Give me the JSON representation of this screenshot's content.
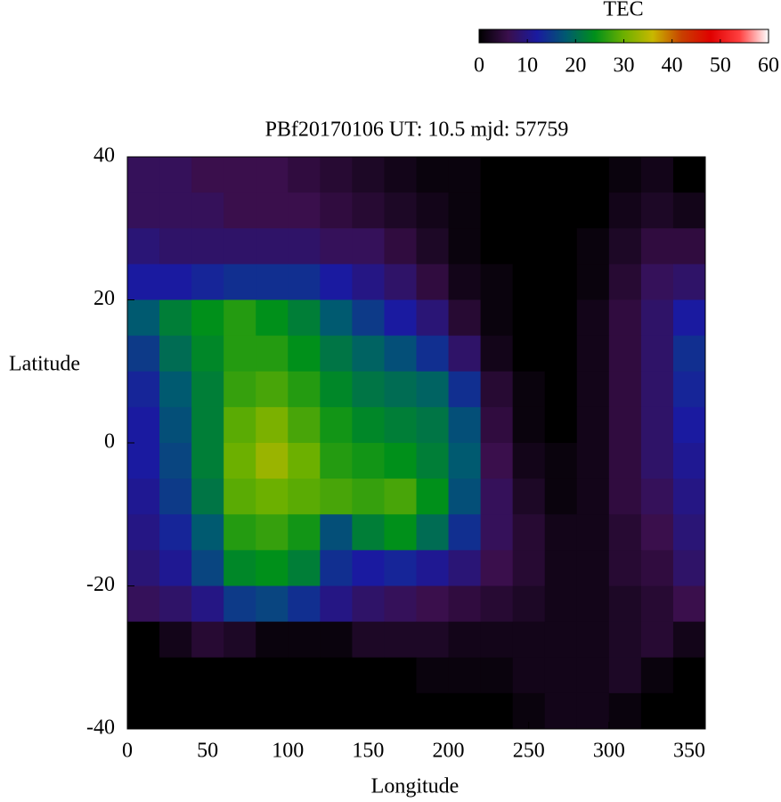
{
  "chart_data": {
    "type": "heatmap",
    "title": "PBf20170106  UT: 10.5  mjd: 57759",
    "xlabel": "Longitude",
    "ylabel": "Latitude",
    "colorbar_label": "TEC",
    "x": [
      10,
      30,
      50,
      70,
      90,
      110,
      130,
      150,
      170,
      190,
      210,
      230,
      250,
      270,
      290,
      310,
      330,
      350
    ],
    "y": [
      37.5,
      32.5,
      27.5,
      22.5,
      17.5,
      12.5,
      7.5,
      2.5,
      -2.5,
      -7.5,
      -12.5,
      -17.5,
      -22.5,
      -27.5,
      -32.5,
      -37.5
    ],
    "z": [
      [
        7,
        7,
        6,
        6,
        6,
        5,
        4,
        3,
        2,
        1,
        1,
        0,
        0,
        0,
        0,
        1,
        2,
        0
      ],
      [
        7,
        7,
        7,
        6,
        6,
        6,
        5,
        4,
        3,
        2,
        1,
        0,
        0,
        0,
        0,
        2,
        3,
        2
      ],
      [
        9,
        8,
        8,
        8,
        8,
        8,
        7,
        7,
        5,
        3,
        1,
        0,
        0,
        0,
        1,
        3,
        5,
        5
      ],
      [
        12,
        12,
        13,
        14,
        14,
        14,
        12,
        10,
        8,
        5,
        2,
        1,
        0,
        0,
        1,
        4,
        7,
        8
      ],
      [
        18,
        22,
        24,
        26,
        24,
        22,
        18,
        15,
        12,
        9,
        4,
        1,
        0,
        0,
        2,
        5,
        8,
        12
      ],
      [
        15,
        20,
        23,
        26,
        26,
        24,
        21,
        19,
        17,
        14,
        8,
        2,
        0,
        0,
        2,
        5,
        8,
        14
      ],
      [
        13,
        18,
        22,
        27,
        28,
        26,
        23,
        21,
        20,
        19,
        14,
        4,
        1,
        0,
        2,
        5,
        8,
        13
      ],
      [
        12,
        17,
        22,
        29,
        31,
        28,
        25,
        23,
        22,
        21,
        17,
        5,
        1,
        0,
        2,
        5,
        8,
        12
      ],
      [
        12,
        16,
        22,
        30,
        33,
        30,
        26,
        25,
        24,
        22,
        18,
        6,
        2,
        1,
        2,
        5,
        8,
        11
      ],
      [
        11,
        15,
        21,
        29,
        30,
        29,
        28,
        27,
        28,
        24,
        17,
        7,
        3,
        1,
        2,
        5,
        7,
        10
      ],
      [
        10,
        13,
        18,
        26,
        27,
        25,
        17,
        22,
        24,
        20,
        14,
        7,
        4,
        2,
        2,
        4,
        6,
        9
      ],
      [
        9,
        11,
        16,
        23,
        24,
        22,
        14,
        12,
        13,
        11,
        9,
        6,
        4,
        2,
        2,
        4,
        5,
        8
      ],
      [
        7,
        8,
        10,
        15,
        16,
        14,
        10,
        8,
        7,
        6,
        5,
        4,
        3,
        2,
        2,
        3,
        4,
        6
      ],
      [
        0,
        2,
        4,
        3,
        1,
        1,
        1,
        3,
        3,
        3,
        2,
        2,
        2,
        2,
        2,
        3,
        4,
        2
      ],
      [
        0,
        0,
        0,
        0,
        0,
        0,
        0,
        0,
        0,
        1,
        1,
        1,
        2,
        2,
        2,
        3,
        1,
        0
      ],
      [
        0,
        0,
        0,
        0,
        0,
        0,
        0,
        0,
        0,
        0,
        0,
        0,
        1,
        2,
        2,
        1,
        0,
        0
      ]
    ],
    "xlim": [
      0,
      360
    ],
    "xticks": [
      0,
      50,
      100,
      150,
      200,
      250,
      300,
      350
    ],
    "ylim": [
      -40,
      40
    ],
    "yticks": [
      -40,
      -20,
      0,
      20,
      40
    ],
    "zlim": [
      0,
      60
    ],
    "zticks": [
      0,
      10,
      20,
      30,
      40,
      50,
      60
    ],
    "colormap": [
      "#000000",
      "#3a0f4c",
      "#1a1aa0",
      "#005a70",
      "#00901a",
      "#6cb000",
      "#c8b800",
      "#c84000",
      "#e00000",
      "#ff4040",
      "#ffffff"
    ]
  }
}
